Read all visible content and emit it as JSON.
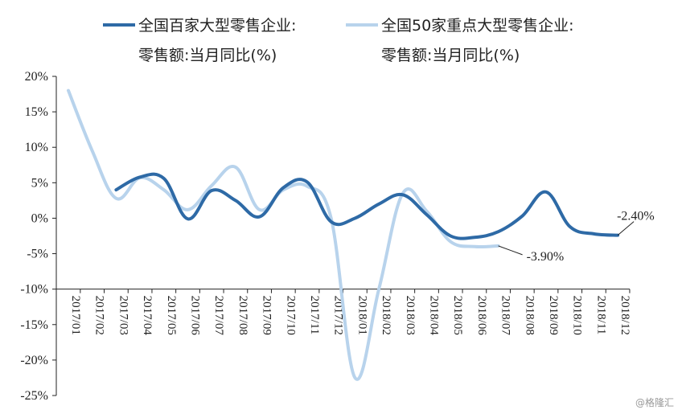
{
  "chart_data": {
    "type": "line",
    "categories": [
      "2017/01",
      "2017/02",
      "2017/03",
      "2017/04",
      "2017/05",
      "2017/06",
      "2017/07",
      "2017/08",
      "2017/09",
      "2017/10",
      "2017/11",
      "2017/12",
      "2018/01",
      "2018/02",
      "2018/03",
      "2018/04",
      "2018/05",
      "2018/06",
      "2018/07",
      "2018/08",
      "2018/09",
      "2018/10",
      "2018/11",
      "2018/12"
    ],
    "ylim": [
      -25,
      20
    ],
    "yticks": [
      20,
      15,
      10,
      5,
      0,
      -5,
      -10,
      -15,
      -20,
      -25
    ],
    "ytick_labels": [
      "20%",
      "15%",
      "10%",
      "5%",
      "0%",
      "-5%",
      "-10%",
      "-15%",
      "-20%",
      "-25%"
    ],
    "grid": false,
    "legend_position": "top",
    "series": [
      {
        "name_line1": "全国百家大型零售企业:",
        "name_line2": "零售额:当月同比(%)",
        "color": "#2e6aa6",
        "values": [
          null,
          null,
          4.0,
          5.8,
          5.6,
          -0.1,
          3.9,
          2.5,
          0.2,
          4.3,
          5.1,
          -0.5,
          0.0,
          2.0,
          3.3,
          0.5,
          -2.5,
          -2.7,
          -1.9,
          0.3,
          3.7,
          -1.2,
          -2.2,
          -2.4
        ]
      },
      {
        "name_line1": "全国50家重点大型零售企业:",
        "name_line2": "零售额:当月同比(%)",
        "color": "#b8d3ec",
        "values": [
          18.0,
          9.5,
          2.8,
          5.7,
          4.0,
          1.2,
          4.6,
          7.2,
          1.2,
          4.0,
          4.5,
          0.0,
          -22.5,
          -10.0,
          3.5,
          1.0,
          -3.3,
          -4.0,
          -3.9,
          null,
          null,
          null,
          null,
          null
        ]
      }
    ],
    "annotations": [
      {
        "text": "-2.40%",
        "series": 0,
        "index": 23
      },
      {
        "text": "-3.90%",
        "series": 1,
        "index": 18
      }
    ]
  },
  "watermark": "@格隆汇"
}
